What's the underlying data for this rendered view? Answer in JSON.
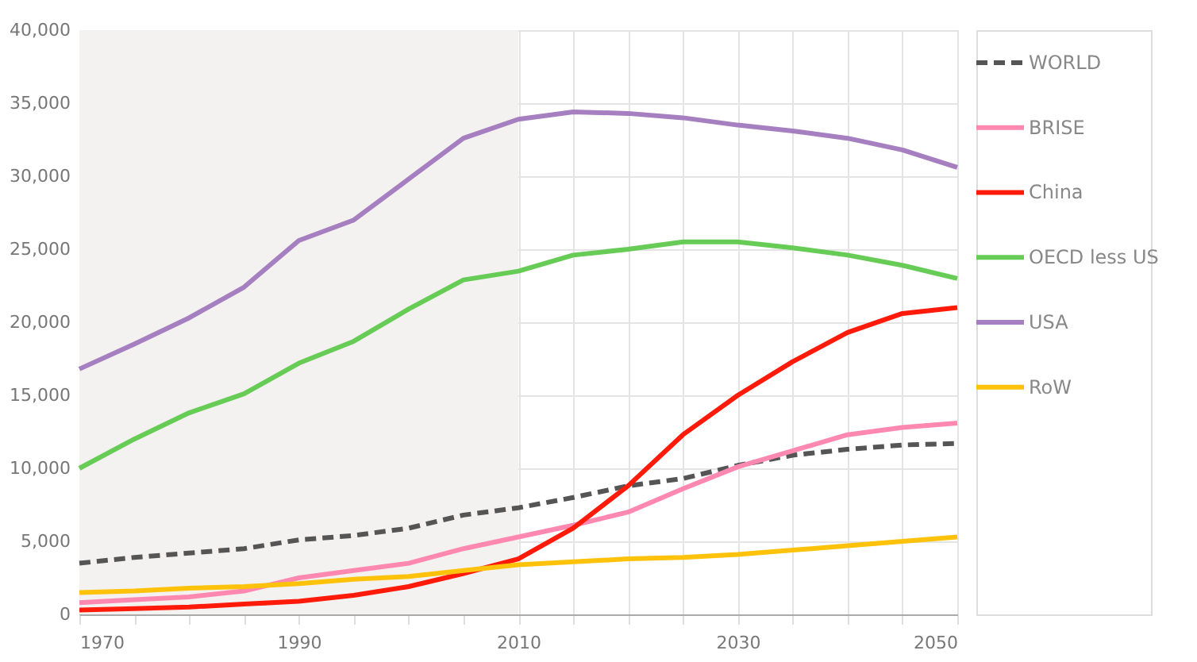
{
  "chart_data": {
    "type": "line",
    "x": [
      1970,
      1975,
      1980,
      1985,
      1990,
      1995,
      2000,
      2005,
      2010,
      2015,
      2020,
      2025,
      2030,
      2035,
      2040,
      2045,
      2050
    ],
    "series": [
      {
        "name": "WORLD",
        "color": "#555555",
        "line_style": "dashed",
        "values": [
          3500,
          3900,
          4200,
          4500,
          5100,
          5400,
          5900,
          6800,
          7300,
          8000,
          8800,
          9300,
          10200,
          10900,
          11300,
          11600,
          11700
        ]
      },
      {
        "name": "BRISE",
        "color": "#ff88b0",
        "values": [
          800,
          1000,
          1200,
          1600,
          2500,
          3000,
          3500,
          4500,
          5300,
          6100,
          7000,
          8600,
          10100,
          11200,
          12300,
          12800,
          13100
        ]
      },
      {
        "name": "China",
        "color": "#ff1a0a",
        "values": [
          300,
          400,
          500,
          700,
          900,
          1300,
          1900,
          2800,
          3800,
          5900,
          8800,
          12300,
          15000,
          17300,
          19300,
          20600,
          21000
        ]
      },
      {
        "name": "OECD less US",
        "color": "#66cc55",
        "values": [
          10000,
          12000,
          13800,
          15100,
          17200,
          18700,
          20900,
          22900,
          23500,
          24600,
          25000,
          25500,
          25500,
          25100,
          24600,
          23900,
          23000
        ]
      },
      {
        "name": "USA",
        "color": "#a57fc0",
        "values": [
          16800,
          18500,
          20300,
          22400,
          25600,
          27000,
          29800,
          32600,
          33900,
          34400,
          34300,
          34000,
          33500,
          33100,
          32600,
          31800,
          30600
        ]
      },
      {
        "name": "RoW",
        "color": "#ffc20a",
        "values": [
          1500,
          1600,
          1800,
          1900,
          2100,
          2400,
          2600,
          3000,
          3400,
          3600,
          3800,
          3900,
          4100,
          4400,
          4700,
          5000,
          5300
        ]
      }
    ],
    "xlim": [
      1970,
      2050
    ],
    "xticks": [
      1970,
      {
        "value": 1975,
        "label": null
      },
      {
        "value": 1980,
        "label": null
      },
      {
        "value": 1985,
        "label": null
      },
      1990,
      {
        "value": 1995,
        "label": null
      },
      {
        "value": 2000,
        "label": null
      },
      {
        "value": 2005,
        "label": null
      },
      2010,
      {
        "value": 2015,
        "label": null
      },
      {
        "value": 2020,
        "label": null
      },
      {
        "value": 2025,
        "label": null
      },
      2030,
      {
        "value": 2035,
        "label": null
      },
      {
        "value": 2040,
        "label": null
      },
      {
        "value": 2045,
        "label": null
      },
      2050
    ],
    "ylim": [
      0,
      40000
    ],
    "yticks": [
      0,
      {
        "value": 5000,
        "label": "5,000"
      },
      {
        "value": 10000,
        "label": "10,000"
      },
      {
        "value": 15000,
        "label": "15,000"
      },
      {
        "value": 20000,
        "label": "20,000"
      },
      {
        "value": 25000,
        "label": "25,000"
      },
      {
        "value": 30000,
        "label": "30,000"
      },
      {
        "value": 35000,
        "label": "35,000"
      },
      {
        "value": 40000,
        "label": "40,000"
      }
    ],
    "bands": [
      {
        "axis": "x",
        "from": 1970,
        "to": 2010,
        "color": "#f3f2f0"
      }
    ],
    "grid": true,
    "legend": "right",
    "line_style": "solid",
    "marker": "none"
  }
}
